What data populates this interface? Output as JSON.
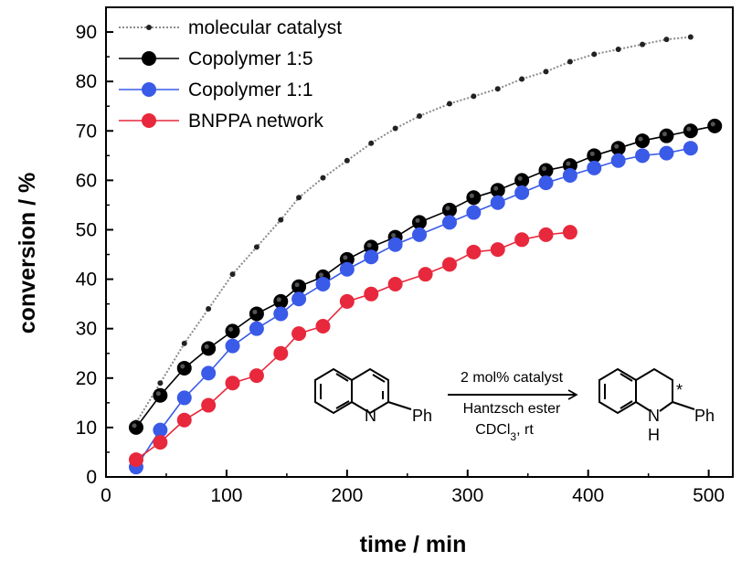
{
  "chart_data": {
    "type": "line",
    "xlabel": "time / min",
    "ylabel": "conversion / %",
    "xlim": [
      0,
      520
    ],
    "ylim": [
      0,
      95
    ],
    "xticks": [
      0,
      100,
      200,
      300,
      400,
      500
    ],
    "yticks": [
      0,
      10,
      20,
      30,
      40,
      50,
      60,
      70,
      80,
      90
    ],
    "grid": false,
    "legend_position": "top-left",
    "series": [
      {
        "name": "molecular catalyst",
        "color": "#8a8a8a",
        "marker": "small",
        "points": [
          [
            25,
            11
          ],
          [
            45,
            19
          ],
          [
            65,
            27
          ],
          [
            85,
            34
          ],
          [
            105,
            41
          ],
          [
            125,
            46.5
          ],
          [
            145,
            52
          ],
          [
            160,
            56.5
          ],
          [
            180,
            60.5
          ],
          [
            200,
            64
          ],
          [
            220,
            67.5
          ],
          [
            240,
            70.5
          ],
          [
            260,
            73
          ],
          [
            285,
            75.5
          ],
          [
            305,
            77
          ],
          [
            325,
            78.5
          ],
          [
            345,
            80.5
          ],
          [
            365,
            82
          ],
          [
            385,
            84
          ],
          [
            405,
            85.5
          ],
          [
            425,
            86.5
          ],
          [
            445,
            87.5
          ],
          [
            465,
            88.5
          ],
          [
            485,
            89
          ]
        ]
      },
      {
        "name": "Copolymer 1:5",
        "color": "#000000",
        "marker": "large",
        "points": [
          [
            25,
            10
          ],
          [
            45,
            16.5
          ],
          [
            65,
            22
          ],
          [
            85,
            26
          ],
          [
            105,
            29.5
          ],
          [
            125,
            33
          ],
          [
            145,
            35.5
          ],
          [
            160,
            38.5
          ],
          [
            180,
            40.5
          ],
          [
            200,
            44
          ],
          [
            220,
            46.5
          ],
          [
            240,
            48.5
          ],
          [
            260,
            51.5
          ],
          [
            285,
            54
          ],
          [
            305,
            56.5
          ],
          [
            325,
            58
          ],
          [
            345,
            60
          ],
          [
            365,
            62
          ],
          [
            385,
            63
          ],
          [
            405,
            65
          ],
          [
            425,
            66.5
          ],
          [
            445,
            68
          ],
          [
            465,
            69
          ],
          [
            485,
            70
          ],
          [
            505,
            71
          ]
        ]
      },
      {
        "name": "Copolymer 1:1",
        "color": "#3a5ae8",
        "marker": "large",
        "points": [
          [
            25,
            2
          ],
          [
            45,
            9.5
          ],
          [
            65,
            16
          ],
          [
            85,
            21
          ],
          [
            105,
            26.5
          ],
          [
            125,
            30
          ],
          [
            145,
            33
          ],
          [
            160,
            36
          ],
          [
            180,
            39
          ],
          [
            200,
            42
          ],
          [
            220,
            44.5
          ],
          [
            240,
            47
          ],
          [
            260,
            49
          ],
          [
            285,
            51.5
          ],
          [
            305,
            53.5
          ],
          [
            325,
            55.5
          ],
          [
            345,
            57.5
          ],
          [
            365,
            59.5
          ],
          [
            385,
            61
          ],
          [
            405,
            62.5
          ],
          [
            425,
            64
          ],
          [
            445,
            65
          ],
          [
            465,
            65.5
          ],
          [
            485,
            66.5
          ]
        ]
      },
      {
        "name": "BNPPA network",
        "color": "#e8283c",
        "marker": "large",
        "points": [
          [
            25,
            3.5
          ],
          [
            45,
            7
          ],
          [
            65,
            11.5
          ],
          [
            85,
            14.5
          ],
          [
            105,
            19
          ],
          [
            125,
            20.5
          ],
          [
            145,
            25
          ],
          [
            160,
            29
          ],
          [
            180,
            30.5
          ],
          [
            200,
            35.5
          ],
          [
            220,
            37
          ],
          [
            240,
            39
          ],
          [
            265,
            41
          ],
          [
            285,
            43
          ],
          [
            305,
            45.5
          ],
          [
            325,
            46
          ],
          [
            345,
            48
          ],
          [
            365,
            49
          ],
          [
            385,
            49.5
          ]
        ]
      }
    ]
  },
  "scheme": {
    "reagent_line1": "2 mol% catalyst",
    "reagent_line2": "Hantzsch ester",
    "reagent_line3": "CDCl",
    "reagent_line3_sub": "3",
    "reagent_line3_tail": ", rt",
    "reactant_n": "N",
    "reactant_sub": "Ph",
    "product_nh": "N",
    "product_h": "H",
    "product_sub": "Ph",
    "product_star": "*"
  }
}
